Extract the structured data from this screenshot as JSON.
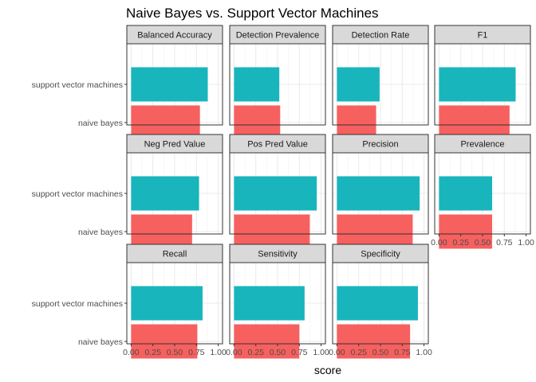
{
  "chart_data": {
    "type": "bar",
    "orientation": "horizontal",
    "layout": "facet-grid",
    "title": "Naive Bayes vs. Support Vector Machines",
    "xlabel": "score",
    "ylabel": "",
    "xlim": [
      0,
      1
    ],
    "x_ticks": [
      "0.00",
      "0.25",
      "0.50",
      "0.75",
      "1.00"
    ],
    "categories": [
      "support vector machines",
      "naive bayes"
    ],
    "colors": {
      "support vector machines": "#19b5bd",
      "naive bayes": "#f6605f"
    },
    "grid": true,
    "facets": [
      {
        "label": "Balanced Accuracy",
        "values": {
          "support vector machines": 0.88,
          "naive bayes": 0.79
        }
      },
      {
        "label": "Detection Prevalence",
        "values": {
          "support vector machines": 0.52,
          "naive bayes": 0.53
        }
      },
      {
        "label": "Detection Rate",
        "values": {
          "support vector machines": 0.49,
          "naive bayes": 0.45
        }
      },
      {
        "label": "F1",
        "values": {
          "support vector machines": 0.88,
          "naive bayes": 0.81
        }
      },
      {
        "label": "Neg Pred Value",
        "values": {
          "support vector machines": 0.78,
          "naive bayes": 0.7
        }
      },
      {
        "label": "Pos Pred Value",
        "values": {
          "support vector machines": 0.95,
          "naive bayes": 0.87
        }
      },
      {
        "label": "Precision",
        "values": {
          "support vector machines": 0.95,
          "naive bayes": 0.87
        }
      },
      {
        "label": "Prevalence",
        "values": {
          "support vector machines": 0.61,
          "naive bayes": 0.61
        }
      },
      {
        "label": "Recall",
        "values": {
          "support vector machines": 0.82,
          "naive bayes": 0.76
        }
      },
      {
        "label": "Sensitivity",
        "values": {
          "support vector machines": 0.81,
          "naive bayes": 0.75
        }
      },
      {
        "label": "Specificity",
        "values": {
          "support vector machines": 0.93,
          "naive bayes": 0.84
        }
      }
    ]
  }
}
